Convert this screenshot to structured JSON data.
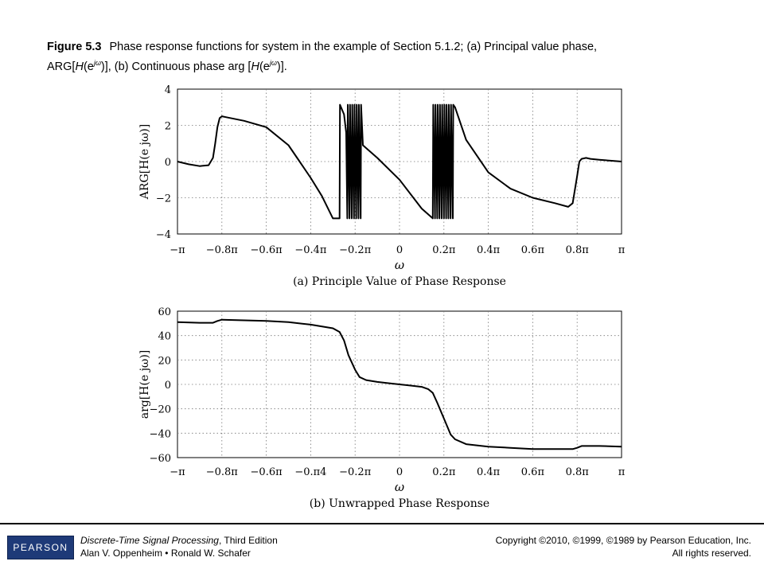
{
  "caption": {
    "label": "Figure 5.3",
    "line1": "Phase response functions for system in the example of Section 5.1.2; (a) Principal value phase,",
    "line2_pre": "ARG[",
    "line2_H": "H",
    "line2_e": "(e",
    "line2_sup": "jω",
    "line2_mid": ")], (b) Continuous phase arg [",
    "line2_H2": "H",
    "line2_e2": "(e",
    "line2_sup2": "jω",
    "line2_end": ")]."
  },
  "footer": {
    "logo": "PEARSON",
    "book_title": "Discrete-Time Signal Processing",
    "book_edition": ", Third Edition",
    "authors": "Alan V. Oppenheim • Ronald W. Schafer",
    "copyright": "Copyright ©2010, ©1999, ©1989 by Pearson Education, Inc.",
    "rights": "All rights reserved."
  },
  "chart_data": [
    {
      "type": "line",
      "title": "(a) Principle Value of Phase Response",
      "xlabel": "ω",
      "ylabel": "ARG[H(e jω)]",
      "x_unit": "π",
      "xlim": [
        -1,
        1
      ],
      "ylim": [
        -4,
        4
      ],
      "xtick_values": [
        -1,
        -0.8,
        -0.6,
        -0.4,
        -0.2,
        0,
        0.2,
        0.4,
        0.6,
        0.8,
        1
      ],
      "xtick_labels": [
        "−π",
        "−0.8π",
        "−0.6π",
        "−0.4π",
        "−0.2π",
        "0",
        "0.2π",
        "0.4π",
        "0.6π",
        "0.8π",
        "π"
      ],
      "ytick_values": [
        4,
        2,
        0,
        -2,
        -4
      ],
      "ytick_labels": [
        "4",
        "2",
        "0",
        "−2",
        "−4"
      ],
      "grid": true,
      "series": [
        {
          "x": [
            -1,
            -0.95,
            -0.9,
            -0.86,
            -0.84,
            -0.83,
            -0.82,
            -0.81,
            -0.8,
            -0.78,
            -0.7,
            -0.6,
            -0.5,
            -0.45,
            -0.4,
            -0.35,
            -0.3,
            -0.27,
            -0.268,
            -0.25,
            -0.24,
            -0.235,
            -0.233,
            -0.225,
            -0.223,
            -0.215,
            -0.213,
            -0.205,
            -0.203,
            -0.195,
            -0.193,
            -0.185,
            -0.183,
            -0.175,
            -0.173,
            -0.165,
            -0.1,
            0,
            0.1,
            0.15,
            0.152,
            0.16,
            0.162,
            0.17,
            0.172,
            0.18,
            0.182,
            0.19,
            0.192,
            0.2,
            0.202,
            0.21,
            0.212,
            0.22,
            0.222,
            0.23,
            0.232,
            0.24,
            0.242,
            0.25,
            0.3,
            0.4,
            0.5,
            0.6,
            0.7,
            0.76,
            0.78,
            0.8,
            0.81,
            0.82,
            0.84,
            0.86,
            0.9,
            0.95,
            1
          ],
          "y": [
            0,
            -0.15,
            -0.25,
            -0.2,
            0.2,
            1.0,
            1.9,
            2.4,
            2.5,
            2.45,
            2.25,
            1.9,
            0.9,
            0,
            -0.9,
            -1.9,
            -3.14,
            -3.14,
            3.14,
            2.6,
            1.6,
            -3.14,
            3.14,
            -3.14,
            3.14,
            -3.14,
            3.14,
            -3.14,
            3.14,
            -3.14,
            3.14,
            -3.14,
            3.14,
            -3.14,
            3.14,
            0.9,
            0.2,
            -1.0,
            -2.6,
            -3.14,
            3.14,
            -3.14,
            3.14,
            -3.14,
            3.14,
            -3.14,
            3.14,
            -3.14,
            3.14,
            -3.14,
            3.14,
            -3.14,
            3.14,
            -3.14,
            3.14,
            -3.14,
            3.14,
            -3.14,
            3.14,
            3.0,
            1.2,
            -0.6,
            -1.5,
            -2.0,
            -2.3,
            -2.5,
            -2.3,
            -0.8,
            0,
            0.15,
            0.2,
            0.15,
            0.1,
            0.05,
            0
          ]
        }
      ]
    },
    {
      "type": "line",
      "title": "(b) Unwrapped Phase Response",
      "xlabel": "ω",
      "ylabel": "arg[H(e jω)]",
      "x_unit": "π",
      "xlim": [
        -1,
        1
      ],
      "ylim": [
        -60,
        60
      ],
      "xtick_values": [
        -1,
        -0.8,
        -0.6,
        -0.4,
        -0.2,
        0,
        0.2,
        0.4,
        0.6,
        0.8,
        1
      ],
      "xtick_labels": [
        "−π",
        "−0.8π",
        "−0.6π",
        "−0.π4",
        "−0.2π",
        "0",
        "0.2π",
        "0.4π",
        "0.6π",
        "0.8π",
        "π"
      ],
      "ytick_values": [
        60,
        40,
        20,
        0,
        -20,
        -40,
        -60
      ],
      "ytick_labels": [
        "60",
        "40",
        "20",
        "0",
        "−20",
        "−40",
        "−60"
      ],
      "grid": true,
      "series": [
        {
          "x": [
            -1,
            -0.9,
            -0.84,
            -0.82,
            -0.8,
            -0.7,
            -0.6,
            -0.5,
            -0.4,
            -0.3,
            -0.27,
            -0.25,
            -0.23,
            -0.2,
            -0.18,
            -0.15,
            -0.1,
            -0.05,
            0,
            0.05,
            0.1,
            0.13,
            0.15,
            0.17,
            0.2,
            0.23,
            0.25,
            0.3,
            0.4,
            0.5,
            0.6,
            0.7,
            0.78,
            0.8,
            0.82,
            0.9,
            1
          ],
          "y": [
            51,
            50.5,
            50.5,
            52,
            53,
            52.5,
            52,
            51,
            49,
            46,
            43,
            36,
            24,
            12,
            6,
            3.5,
            2,
            1,
            0,
            -1,
            -2,
            -4,
            -7,
            -15,
            -28,
            -41,
            -45,
            -49,
            -51,
            -52,
            -53,
            -53,
            -53,
            -52,
            -50.5,
            -50.5,
            -51
          ]
        }
      ]
    }
  ]
}
